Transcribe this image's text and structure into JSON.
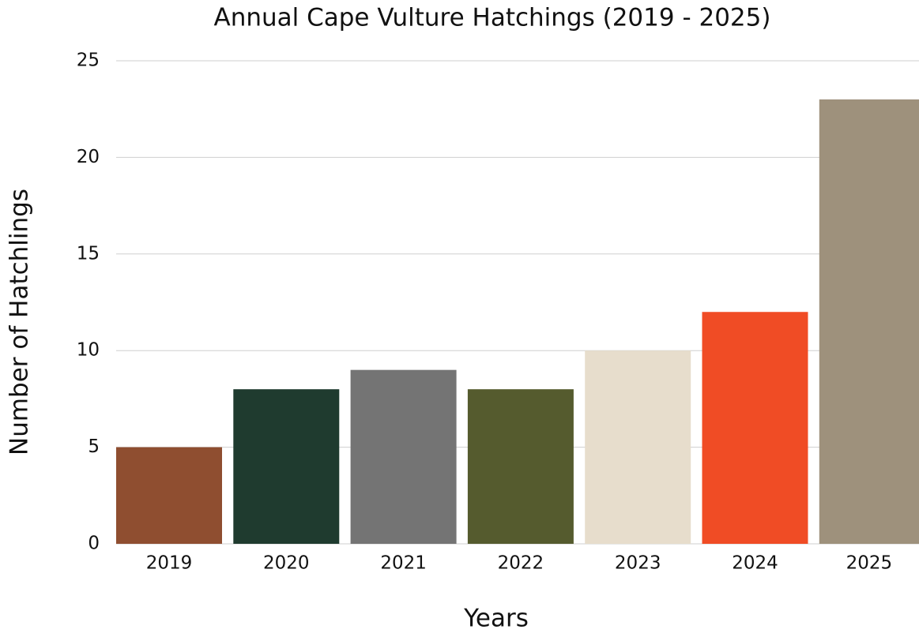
{
  "chart_data": {
    "type": "bar",
    "title": "Annual Cape Vulture Hatchings (2019 - 2025)",
    "x_label": "Years",
    "y_label": "Number of Hatchlings",
    "categories": [
      "2019",
      "2020",
      "2021",
      "2022",
      "2023",
      "2024",
      "2025"
    ],
    "values": [
      5,
      8,
      9,
      8,
      10,
      12,
      23
    ],
    "colors": [
      "#8f4e30",
      "#1f3b2f",
      "#747474",
      "#555b2e",
      "#e7ddcc",
      "#f04c25",
      "#9e917c"
    ],
    "ylim": [
      0,
      25
    ],
    "yticks": [
      0,
      5,
      10,
      15,
      20,
      25
    ],
    "grid": true
  }
}
